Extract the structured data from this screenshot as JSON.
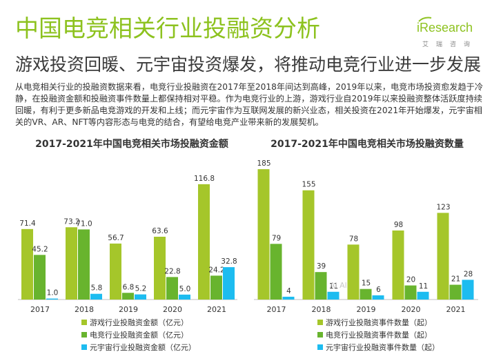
{
  "page": {
    "title": "中国电竞相关行业投融资分析",
    "subtitle": "游戏投资回暖、元宇宙投资爆发，将推动电竞行业进一步发展",
    "paragraph": "从电竞相关行业的投融资数据来看，电竞行业投融资在2017年至2018年间达到高峰，2019年以来，电竞市场投资愈发趋于冷静，在投融资金额和投融资事件数量上都保持相对平稳。作为电竞行业的上游，游戏行业自2019年以来投融资整体活跃度持续回暖，有利于更多新品电竞游戏的开发和上线；而元宇宙作为互联网发展的新兴业态，相关投资在2021年开始爆发，元宇宙相关的VR、AR、NFT等内容形态与电竞的结合，有望给电竞产业带来新的发展契机。",
    "logo_text": "iResearch",
    "logo_sub": "艾瑞咨询",
    "watermark": "Al  Al"
  },
  "colors": {
    "green_light": "#a5c62a",
    "green_dark": "#68b42e",
    "cyan": "#1dbcf0",
    "title_green": "#8dc21f"
  },
  "chart_data": [
    {
      "type": "bar",
      "title": "2017-2021年中国电竞相关市场投融资金额",
      "categories": [
        "2017",
        "2018",
        "2019",
        "2020",
        "2021"
      ],
      "series": [
        {
          "name": "游戏行业投融资金额（亿元）",
          "values": [
            71.4,
            73.2,
            56.7,
            63.6,
            116.8
          ],
          "labels": [
            "71.4",
            "73.2",
            "56.7",
            "63.6",
            "116.8"
          ]
        },
        {
          "name": "电竞行业投融资金额（亿元）",
          "values": [
            45.2,
            71.0,
            6.8,
            22.8,
            24.2
          ],
          "labels": [
            "45.2",
            "71.0",
            "6.8",
            "22.8",
            "24.2"
          ]
        },
        {
          "name": "元宇宙行业投融资金额（亿元）",
          "values": [
            1.0,
            5.8,
            5.2,
            5.0,
            32.8
          ],
          "labels": [
            "1.0",
            "5.8",
            "5.2",
            "5.0",
            "32.8"
          ]
        }
      ],
      "ylim": [
        0,
        130
      ],
      "legend": "bottom"
    },
    {
      "type": "bar",
      "title": "2017-2021年中国电竞相关市场投融资数量",
      "categories": [
        "2017",
        "2018",
        "2019",
        "2020",
        "2021"
      ],
      "series": [
        {
          "name": "游戏行业投融资事件数量（起）",
          "values": [
            185,
            155,
            78,
            98,
            123
          ],
          "labels": [
            "185",
            "155",
            "78",
            "98",
            "123"
          ]
        },
        {
          "name": "电竞行业投融资事件数量（起）",
          "values": [
            79,
            39,
            15,
            20,
            21
          ],
          "labels": [
            "79",
            "39",
            "15",
            "20",
            "21"
          ]
        },
        {
          "name": "元宇宙行业投融资事件数量（起）",
          "values": [
            4,
            11,
            6,
            11,
            28
          ],
          "labels": [
            "4",
            "11",
            "6",
            "11",
            "28"
          ]
        }
      ],
      "ylim": [
        0,
        190
      ],
      "legend": "bottom"
    }
  ]
}
